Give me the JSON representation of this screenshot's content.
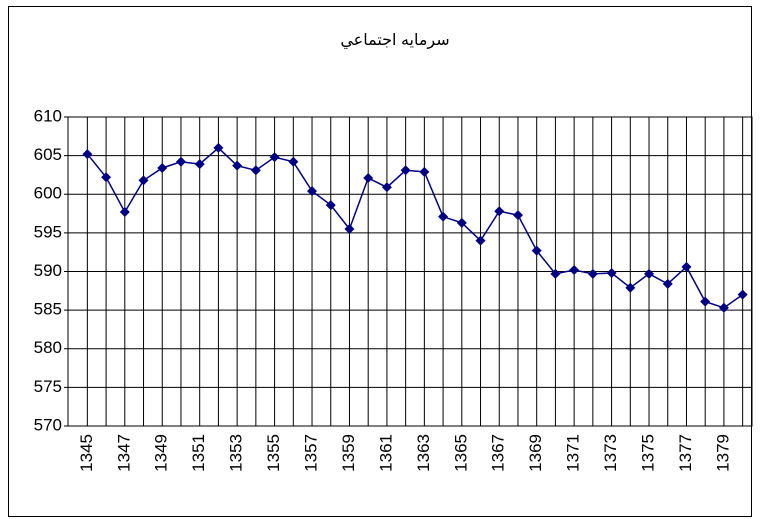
{
  "chart_data": {
    "type": "line",
    "title": "سرمايه اجتماعي",
    "categories": [
      "1345",
      null,
      "1347",
      null,
      "1349",
      null,
      "1351",
      null,
      "1353",
      null,
      "1355",
      null,
      "1357",
      null,
      "1359",
      null,
      "1361",
      null,
      "1363",
      null,
      "1365",
      null,
      "1367",
      null,
      "1369",
      null,
      "1371",
      null,
      "1373",
      null,
      "1375",
      null,
      "1377",
      null,
      "1379",
      null
    ],
    "series": [
      {
        "color": "#000080",
        "values": [
          605.2,
          602.2,
          597.7,
          601.8,
          603.4,
          604.2,
          603.9,
          606.0,
          603.7,
          603.1,
          604.8,
          604.2,
          600.4,
          598.6,
          595.5,
          602.1,
          600.9,
          603.1,
          602.9,
          597.1,
          596.3,
          594.0,
          597.8,
          597.3,
          592.7,
          589.7,
          590.2,
          589.7,
          589.8,
          587.9,
          589.7,
          588.4,
          590.6,
          586.1,
          585.3,
          587.0
        ]
      }
    ],
    "ylim": [
      570,
      610
    ],
    "yticks": [
      570,
      575,
      580,
      585,
      590,
      595,
      600,
      605,
      610
    ],
    "grid": true
  }
}
